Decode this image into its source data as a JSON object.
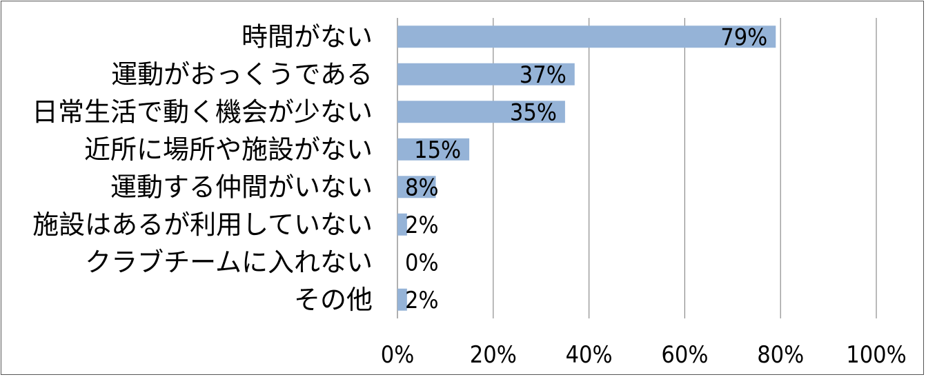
{
  "chart_data": {
    "type": "bar",
    "orientation": "horizontal",
    "categories": [
      "時間がない",
      "運動がおっくうである",
      "日常生活で動く機会が少ない",
      "近所に場所や施設がない",
      "運動する仲間がいない",
      "施設はあるが利用していない",
      "クラブチームに入れない",
      "その他"
    ],
    "values": [
      79,
      37,
      35,
      15,
      8,
      2,
      0,
      2
    ],
    "data_labels": [
      "79%",
      "37%",
      "35%",
      "15%",
      "8%",
      "2%",
      "0%",
      "2%"
    ],
    "x_ticks": [
      "0%",
      "20%",
      "40%",
      "60%",
      "80%",
      "100%"
    ],
    "xlim": [
      0,
      100
    ],
    "grid": "vertical",
    "bar_color": "#95b3d7",
    "gridline_color": "#8c8c8c"
  }
}
